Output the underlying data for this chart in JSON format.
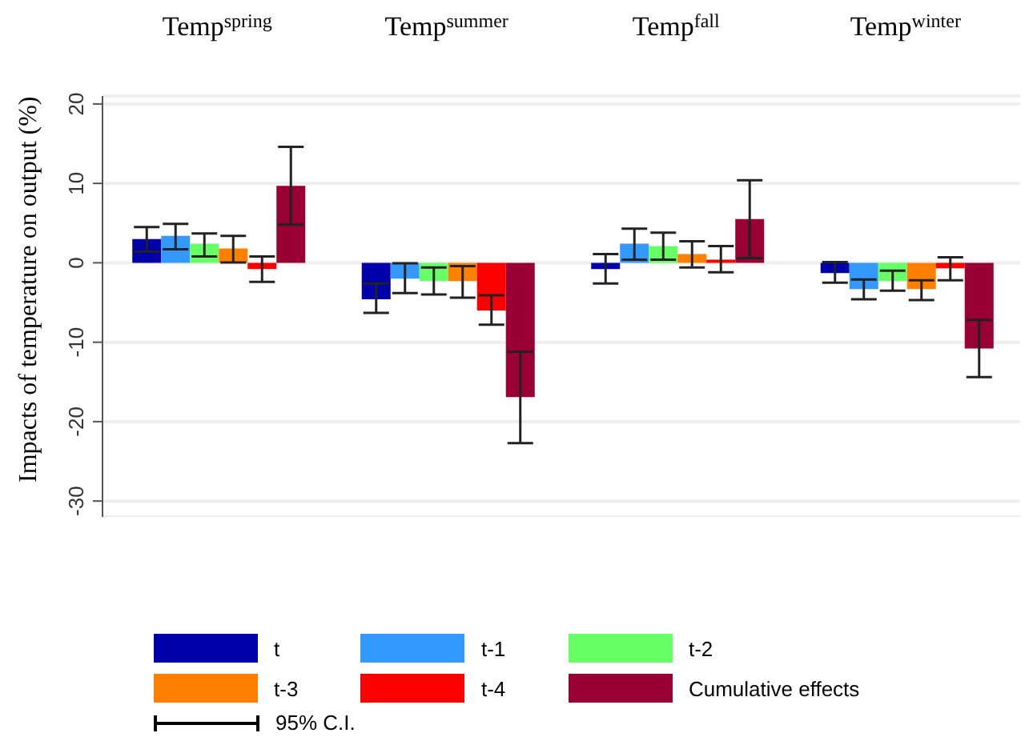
{
  "chart_data": {
    "type": "bar",
    "ylabel": "Impacts of temperature on output (%)",
    "categories": [
      "Temp$^{spring}$",
      "Temp$^{summer}$",
      "Temp$^{fall}$",
      "Temp$^{winter}$"
    ],
    "series": [
      {
        "name": "t",
        "color": "#0000aa",
        "values": [
          3.0,
          -4.6,
          -0.8,
          -1.3
        ],
        "errors": [
          [
            1.4,
            4.5
          ],
          [
            -6.3,
            -2.6
          ],
          [
            -2.6,
            1.1
          ],
          [
            -2.5,
            0.1
          ]
        ]
      },
      {
        "name": "t-1",
        "color": "#3399ff",
        "values": [
          3.4,
          -2.0,
          2.4,
          -3.3
        ],
        "errors": [
          [
            1.7,
            4.9
          ],
          [
            -3.8,
            -0.05
          ],
          [
            0.4,
            4.3
          ],
          [
            -4.6,
            -2.1
          ]
        ]
      },
      {
        "name": "t-2",
        "color": "#66ff66",
        "values": [
          2.4,
          -2.3,
          2.1,
          -2.3
        ],
        "errors": [
          [
            0.8,
            3.7
          ],
          [
            -4.0,
            -0.6
          ],
          [
            0.4,
            3.8
          ],
          [
            -3.5,
            -1.0
          ]
        ]
      },
      {
        "name": "t-3",
        "color": "#ff8000",
        "values": [
          1.8,
          -2.3,
          1.1,
          -3.3
        ],
        "errors": [
          [
            0.05,
            3.4
          ],
          [
            -4.4,
            -0.4
          ],
          [
            -0.6,
            2.7
          ],
          [
            -4.7,
            -2.2
          ]
        ]
      },
      {
        "name": "t-4",
        "color": "#ff0000",
        "values": [
          -0.8,
          -6.0,
          0.4,
          -0.7
        ],
        "errors": [
          [
            -2.4,
            0.8
          ],
          [
            -7.8,
            -4.1
          ],
          [
            -1.2,
            2.1
          ],
          [
            -2.2,
            0.7
          ]
        ]
      },
      {
        "name": "Cumulative effects",
        "color": "#990033",
        "values": [
          9.7,
          -16.9,
          5.5,
          -10.8
        ],
        "errors": [
          [
            4.8,
            14.6
          ],
          [
            -22.7,
            -11.2
          ],
          [
            0.6,
            10.4
          ],
          [
            -14.4,
            -7.2
          ]
        ]
      }
    ],
    "ylim": [
      -32,
      21
    ],
    "yticks": [
      -30,
      -20,
      -10,
      0,
      10,
      20
    ],
    "grid": "y",
    "legend": "bottom",
    "annotations": [
      "95% C.I."
    ]
  }
}
